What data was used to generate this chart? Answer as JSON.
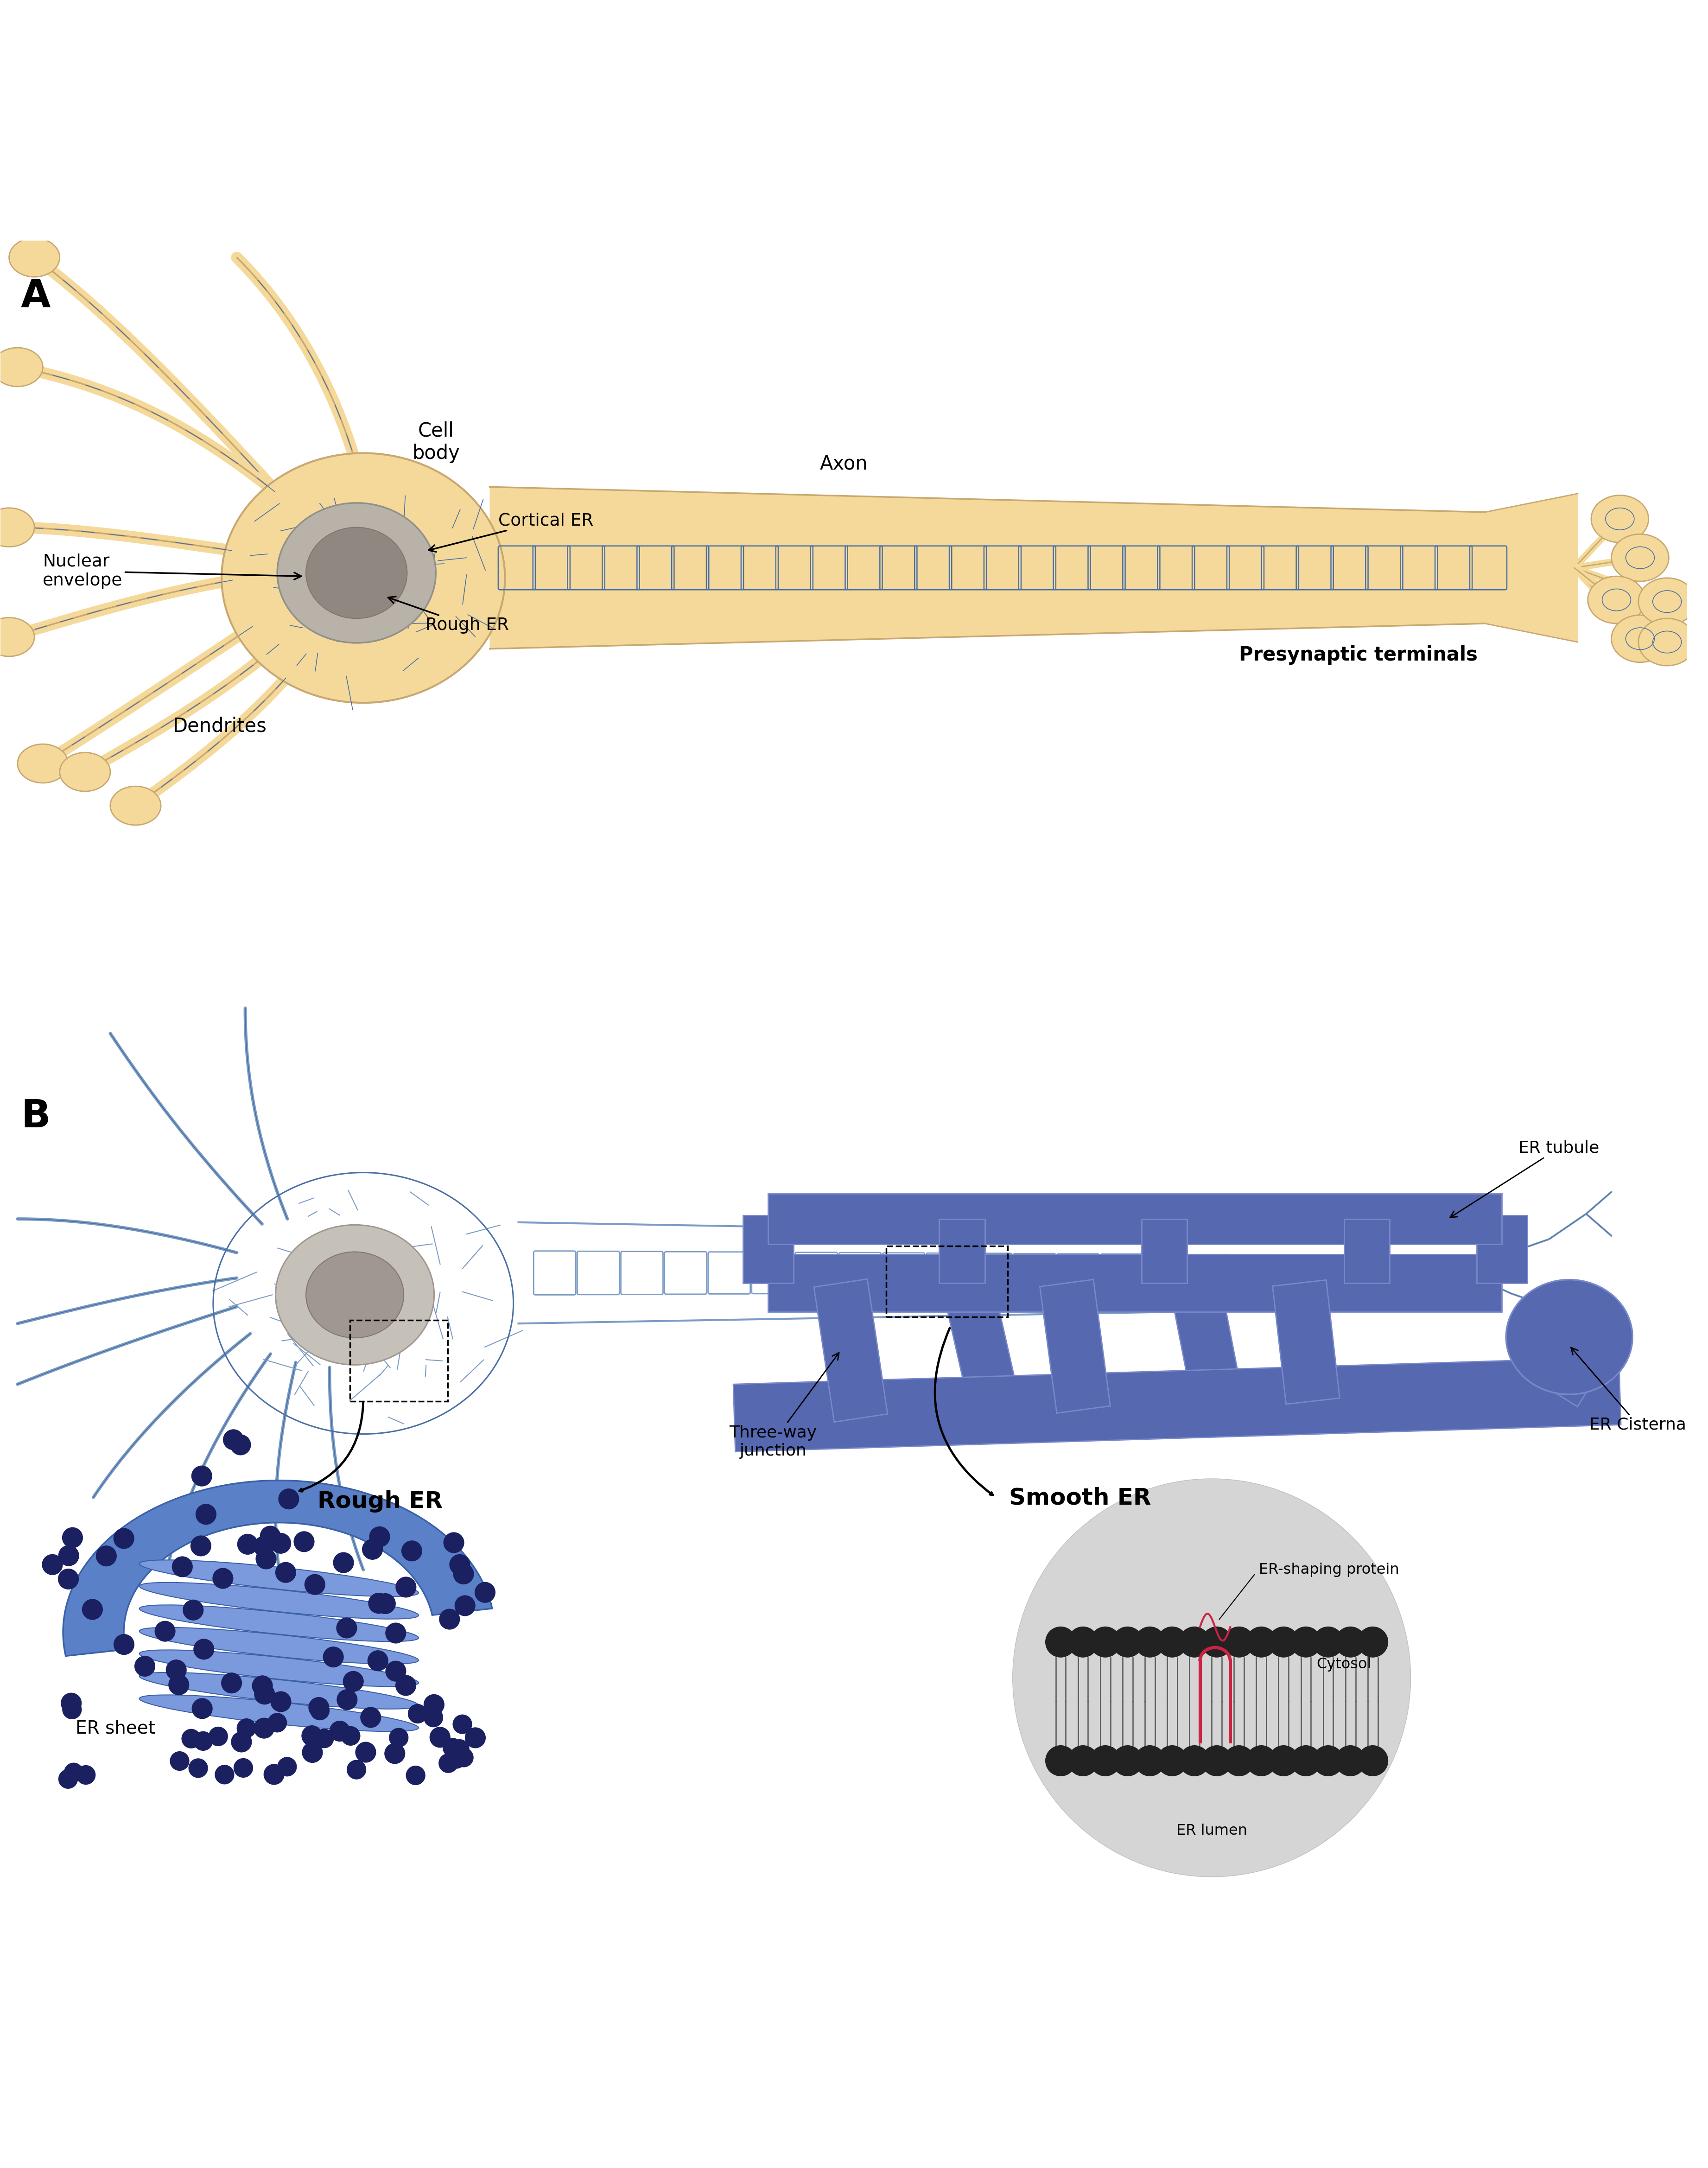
{
  "bg": "#ffffff",
  "golden": "#f5d99a",
  "golden_outline": "#c8a870",
  "er_blue": "#4a6fa5",
  "nucleus_outer": "#b8b2a8",
  "nucleus_inner": "#908880",
  "blue_neuron": "#7b9cc4",
  "blue_neuron_outline": "#4a6fa5",
  "rough_er_fill": "#5a80c8",
  "rough_er_light": "#7a9add",
  "smooth_er_fill": "#5568b0",
  "smooth_er_light": "#7888c8",
  "ribosome": "#1a2060",
  "er_protein": "#cc2244",
  "lipid_head": "#222222",
  "gray_inset": "#d5d5d5",
  "black": "#111111",
  "panel_A_dendrites": [
    [
      [
        0.16,
        0.855
      ],
      [
        0.1,
        0.92
      ],
      [
        0.06,
        0.96
      ],
      [
        0.02,
        0.99
      ]
    ],
    [
      [
        0.17,
        0.845
      ],
      [
        0.11,
        0.895
      ],
      [
        0.06,
        0.915
      ],
      [
        0.01,
        0.925
      ]
    ],
    [
      [
        0.145,
        0.815
      ],
      [
        0.08,
        0.825
      ],
      [
        0.035,
        0.83
      ],
      [
        0.005,
        0.83
      ]
    ],
    [
      [
        0.145,
        0.8
      ],
      [
        0.085,
        0.79
      ],
      [
        0.04,
        0.775
      ],
      [
        0.005,
        0.765
      ]
    ],
    [
      [
        0.155,
        0.775
      ],
      [
        0.11,
        0.745
      ],
      [
        0.065,
        0.715
      ],
      [
        0.025,
        0.69
      ]
    ],
    [
      [
        0.17,
        0.765
      ],
      [
        0.13,
        0.73
      ],
      [
        0.085,
        0.705
      ],
      [
        0.05,
        0.685
      ]
    ],
    [
      [
        0.185,
        0.76
      ],
      [
        0.155,
        0.72
      ],
      [
        0.115,
        0.69
      ],
      [
        0.08,
        0.665
      ]
    ],
    [
      [
        0.21,
        0.87
      ],
      [
        0.195,
        0.92
      ],
      [
        0.17,
        0.96
      ],
      [
        0.14,
        0.99
      ]
    ]
  ],
  "panel_B_dendrites": [
    [
      [
        0.155,
        0.417
      ],
      [
        0.11,
        0.465
      ],
      [
        0.085,
        0.5
      ],
      [
        0.065,
        0.53
      ]
    ],
    [
      [
        0.17,
        0.42
      ],
      [
        0.15,
        0.47
      ],
      [
        0.145,
        0.51
      ],
      [
        0.145,
        0.545
      ]
    ],
    [
      [
        0.14,
        0.4
      ],
      [
        0.085,
        0.415
      ],
      [
        0.045,
        0.42
      ],
      [
        0.01,
        0.42
      ]
    ],
    [
      [
        0.14,
        0.385
      ],
      [
        0.09,
        0.378
      ],
      [
        0.05,
        0.368
      ],
      [
        0.01,
        0.358
      ]
    ],
    [
      [
        0.14,
        0.368
      ],
      [
        0.09,
        0.352
      ],
      [
        0.05,
        0.338
      ],
      [
        0.01,
        0.322
      ]
    ],
    [
      [
        0.148,
        0.352
      ],
      [
        0.105,
        0.318
      ],
      [
        0.075,
        0.285
      ],
      [
        0.055,
        0.255
      ]
    ],
    [
      [
        0.16,
        0.34
      ],
      [
        0.13,
        0.298
      ],
      [
        0.11,
        0.258
      ],
      [
        0.1,
        0.218
      ]
    ],
    [
      [
        0.175,
        0.335
      ],
      [
        0.165,
        0.292
      ],
      [
        0.16,
        0.252
      ],
      [
        0.165,
        0.212
      ]
    ],
    [
      [
        0.195,
        0.332
      ],
      [
        0.195,
        0.29
      ],
      [
        0.2,
        0.252
      ],
      [
        0.215,
        0.212
      ]
    ]
  ]
}
